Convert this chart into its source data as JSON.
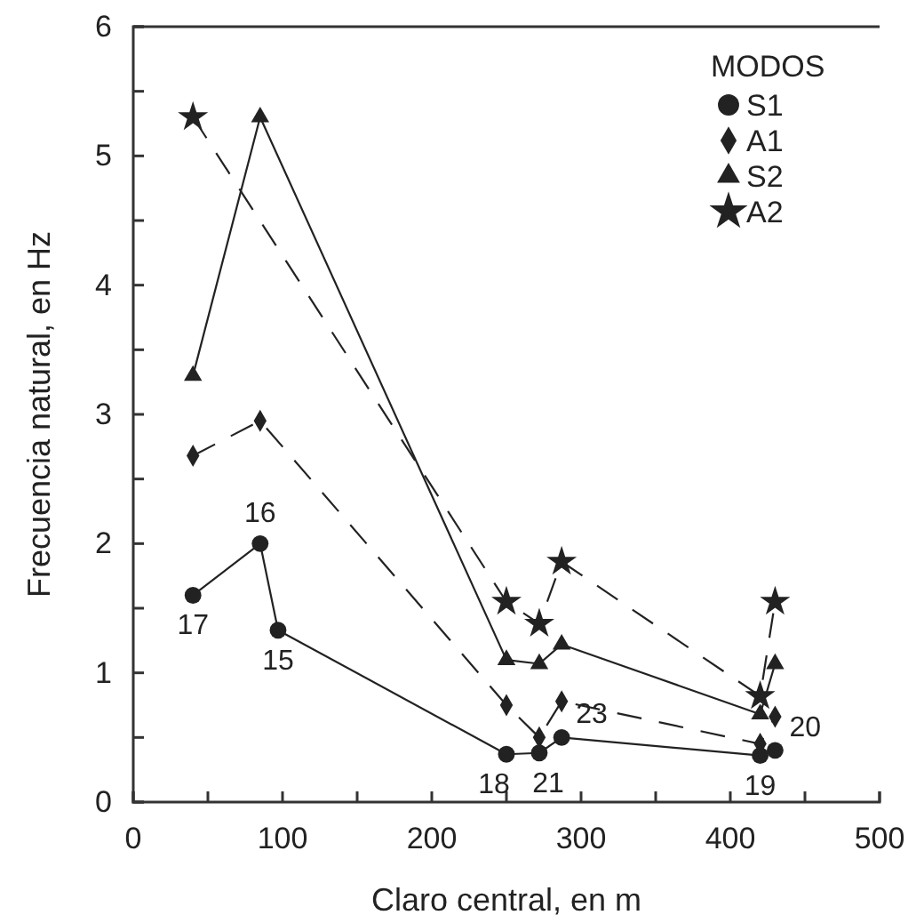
{
  "chart_data": {
    "type": "line",
    "xlabel": "Claro central,  en m",
    "ylabel": "Frecuencia natural, en Hz",
    "legend_title": "MODOS",
    "legend": "top right",
    "xlim": [
      0,
      500
    ],
    "ylim": [
      0,
      6
    ],
    "xticks": [
      0,
      {
        "value": 50,
        "label": null
      },
      100,
      {
        "value": 150,
        "label": null
      },
      200,
      {
        "value": 250,
        "label": null
      },
      300,
      {
        "value": 350,
        "label": null
      },
      400,
      {
        "value": 450,
        "label": null
      },
      500
    ],
    "yticks": [
      0,
      {
        "value": 0.5,
        "label": null
      },
      1,
      {
        "value": 1.5,
        "label": null
      },
      2,
      {
        "value": 2.5,
        "label": null
      },
      3,
      {
        "value": 3.5,
        "label": null
      },
      4,
      {
        "value": 4.5,
        "label": null
      },
      5,
      {
        "value": 5.5,
        "label": null
      },
      6
    ],
    "series": [
      {
        "name": "S1",
        "color": "#222222",
        "marker": "circle",
        "line_style": "solid",
        "x": [
          40,
          85,
          97,
          250,
          272,
          287,
          420,
          430
        ],
        "values": [
          1.6,
          2.0,
          1.33,
          0.37,
          0.38,
          0.5,
          0.36,
          0.4
        ]
      },
      {
        "name": "A1",
        "color": "#222222",
        "marker": "diamond",
        "line_style": "dashed",
        "x": [
          40,
          85,
          250,
          272,
          287,
          420,
          430
        ],
        "values": [
          2.68,
          2.95,
          0.75,
          0.5,
          0.78,
          0.45,
          0.66
        ]
      },
      {
        "name": "S2",
        "color": "#222222",
        "marker": "triangle",
        "line_style": "solid",
        "x": [
          40,
          85,
          250,
          272,
          287,
          420,
          430
        ],
        "values": [
          3.3,
          5.3,
          1.1,
          1.07,
          1.22,
          0.68,
          1.07
        ]
      },
      {
        "name": "A2",
        "color": "#222222",
        "marker": "star",
        "line_style": "dashed",
        "x": [
          40,
          250,
          272,
          287,
          420,
          430
        ],
        "values": [
          5.3,
          1.55,
          1.38,
          1.86,
          0.82,
          1.55
        ]
      }
    ],
    "annotations": [
      {
        "text": "17",
        "x": 40,
        "y": 1.6
      },
      {
        "text": "16",
        "x": 85,
        "y": 2.0
      },
      {
        "text": "15",
        "x": 97,
        "y": 1.33
      },
      {
        "text": "18",
        "x": 250,
        "y": 0.37
      },
      {
        "text": "21",
        "x": 272,
        "y": 0.38
      },
      {
        "text": "23",
        "x": 287,
        "y": 0.5
      },
      {
        "text": "19",
        "x": 420,
        "y": 0.36
      },
      {
        "text": "20",
        "x": 430,
        "y": 0.4
      }
    ]
  }
}
